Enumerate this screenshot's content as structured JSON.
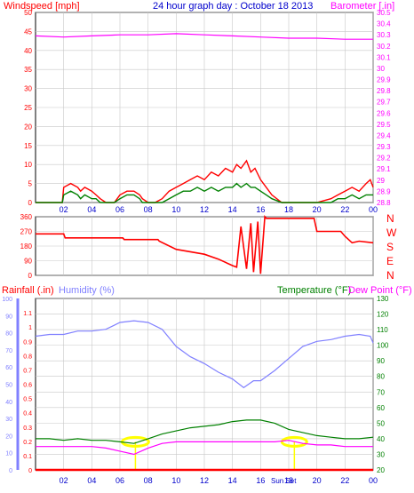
{
  "header": {
    "title": "24 hour graph day : October 18 2013",
    "windspeed_label": "Windspeed [mph]",
    "barometer_label": "Barometer [.in]"
  },
  "colors": {
    "wind": "#ff0000",
    "gust": "#ff0000",
    "avgwind": "#008000",
    "baro": "#ff00ff",
    "dir": "#ff0000",
    "rain": "#ff0000",
    "humidity": "#8080ff",
    "temperature": "#008000",
    "dewpoint": "#ff00ff",
    "title": "#0000cc",
    "axis": "#0000cc",
    "grid": "#c8c8c8",
    "sun": "#ffff00"
  },
  "chart_data": [
    {
      "id": "wind",
      "type": "line",
      "title": "24 hour graph day : October 18 2013",
      "ylabel": "Windspeed [mph]",
      "y2label": "Barometer [.in]",
      "ylim": [
        0,
        50
      ],
      "y2lim": [
        28.8,
        30.5
      ],
      "x_ticks": [
        "02",
        "04",
        "06",
        "08",
        "10",
        "12",
        "14",
        "16",
        "18",
        "20",
        "22",
        "00"
      ],
      "y_ticks": [
        "0",
        "5",
        "10",
        "15",
        "20",
        "25",
        "30",
        "35",
        "40",
        "45",
        "50"
      ],
      "y2_ticks": [
        "28.8",
        "28.9",
        "29",
        "29.1",
        "29.2",
        "29.3",
        "29.4",
        "29.5",
        "29.6",
        "29.7",
        "29.8",
        "29.9",
        "30",
        "30.1",
        "30.2",
        "30.3",
        "30.4",
        "30.5"
      ],
      "series": [
        {
          "role": "gust",
          "x": [
            0,
            1.9,
            2.0,
            2.5,
            3.0,
            3.2,
            3.5,
            4.0,
            4.3,
            4.6,
            5.0,
            5.6,
            6.0,
            6.5,
            7.0,
            7.4,
            7.6,
            8.0,
            8.5,
            9.0,
            9.5,
            10.0,
            10.5,
            11.0,
            11.5,
            12.0,
            12.5,
            13.0,
            13.5,
            14.0,
            14.3,
            14.6,
            15.0,
            15.3,
            15.6,
            16.0,
            16.4,
            16.8,
            17.5,
            18.0,
            19.0,
            20.0,
            21.0,
            21.5,
            22.0,
            22.5,
            23.0,
            23.5,
            23.8,
            24.0
          ],
          "values": [
            0,
            0,
            4,
            5,
            4,
            3,
            4,
            3,
            2,
            1,
            0,
            0,
            2,
            3,
            3,
            2,
            1,
            0,
            0,
            1,
            3,
            4,
            5,
            6,
            7,
            6,
            8,
            7,
            9,
            8,
            10,
            9,
            11,
            8,
            9,
            6,
            4,
            2,
            0,
            0,
            0,
            0,
            1,
            2,
            3,
            4,
            3,
            5,
            6,
            4
          ]
        },
        {
          "role": "wind",
          "x": [
            0,
            1.9,
            2.0,
            2.5,
            3.0,
            3.2,
            3.5,
            4.0,
            4.3,
            4.6,
            5.0,
            5.6,
            6.0,
            6.5,
            7.0,
            7.4,
            7.6,
            8.0,
            8.5,
            9.0,
            9.5,
            10.0,
            10.5,
            11.0,
            11.5,
            12.0,
            12.5,
            13.0,
            13.5,
            14.0,
            14.3,
            14.6,
            15.0,
            15.3,
            15.6,
            16.0,
            16.4,
            16.8,
            17.5,
            18.0,
            19.0,
            20.0,
            21.0,
            21.5,
            22.0,
            22.5,
            23.0,
            23.5,
            23.8,
            24.0
          ],
          "values": [
            0,
            0,
            2,
            3,
            2,
            1,
            2,
            1,
            1,
            0,
            0,
            0,
            1,
            2,
            2,
            1,
            0,
            0,
            0,
            0,
            1,
            2,
            3,
            3,
            4,
            3,
            4,
            3,
            4,
            4,
            5,
            4,
            5,
            4,
            4,
            3,
            2,
            1,
            0,
            0,
            0,
            0,
            0,
            1,
            1,
            2,
            1,
            2,
            2,
            2
          ]
        },
        {
          "role": "baro",
          "x": [
            0,
            2,
            4,
            6,
            8,
            10,
            12,
            14,
            16,
            18,
            20,
            22,
            24
          ],
          "values": [
            30.29,
            30.28,
            30.29,
            30.3,
            30.3,
            30.31,
            30.3,
            30.29,
            30.28,
            30.27,
            30.27,
            30.26,
            30.26
          ]
        }
      ]
    },
    {
      "id": "direction",
      "type": "line",
      "ylim": [
        0,
        360
      ],
      "y_ticks": [
        "0",
        "90",
        "180",
        "270",
        "360"
      ],
      "compass": [
        "N",
        "W",
        "S",
        "E",
        "N"
      ],
      "series": [
        {
          "role": "dir",
          "x": [
            0,
            2,
            2.1,
            6.2,
            6.3,
            8.7,
            8.8,
            10.0,
            12.0,
            13.0,
            14.0,
            14.3,
            14.6,
            15.0,
            15.3,
            15.5,
            15.8,
            16.0,
            16.3,
            16.4,
            19.8,
            20.0,
            21.7,
            22.0,
            22.5,
            23.0,
            24.0
          ],
          "values": [
            255,
            255,
            230,
            230,
            220,
            220,
            210,
            160,
            130,
            100,
            60,
            50,
            300,
            40,
            320,
            20,
            330,
            10,
            360,
            350,
            350,
            270,
            270,
            240,
            200,
            210,
            200
          ]
        }
      ]
    },
    {
      "id": "climate",
      "type": "line",
      "label_rain": "Rainfall (.in)",
      "label_humidity": "Humidity (%)",
      "label_temperature": "Temperature (°F)",
      "label_dewpoint": "Dew Point (°F)",
      "sun_label": "Sun Set",
      "sun_rise_hour": 7.1,
      "sun_set_hour": 18.4,
      "ylim_rain": [
        0,
        1.2
      ],
      "ylim_humidity": [
        0,
        100
      ],
      "ylim_temp": [
        20,
        130
      ],
      "x_ticks": [
        "02",
        "04",
        "06",
        "08",
        "10",
        "12",
        "14",
        "16",
        "18",
        "20",
        "22",
        "00"
      ],
      "rain_ticks": [
        "0",
        "0.1",
        "0.2",
        "0.3",
        "0.4",
        "0.5",
        "0.6",
        "0.7",
        "0.8",
        "0.9",
        "1",
        "1.1"
      ],
      "humidity_ticks": [
        "0",
        "10",
        "20",
        "30",
        "40",
        "50",
        "60",
        "70",
        "80",
        "90",
        "100"
      ],
      "temp_ticks": [
        "20",
        "30",
        "40",
        "50",
        "60",
        "70",
        "80",
        "90",
        "100",
        "110",
        "120",
        "130"
      ],
      "series": [
        {
          "role": "humidity",
          "x": [
            0,
            1,
            2,
            3,
            4,
            5,
            6,
            7,
            8,
            9,
            10,
            11,
            12,
            13,
            14,
            14.8,
            15.5,
            16,
            17,
            18,
            19,
            20,
            21,
            22,
            23,
            23.8,
            24
          ],
          "values": [
            78,
            79,
            79,
            81,
            81,
            82,
            86,
            87,
            86,
            82,
            72,
            66,
            62,
            57,
            53,
            48,
            52,
            52,
            58,
            65,
            72,
            75,
            76,
            78,
            79,
            78,
            74
          ]
        },
        {
          "role": "temperature",
          "x": [
            0,
            1,
            2,
            3,
            4,
            5,
            6,
            7,
            8,
            9,
            10,
            11,
            12,
            13,
            14,
            15,
            16,
            17,
            18,
            19,
            20,
            21,
            22,
            23,
            24
          ],
          "values": [
            40,
            40,
            39,
            40,
            39,
            39,
            38,
            37,
            40,
            43,
            45,
            47,
            48,
            49,
            51,
            52,
            52,
            50,
            46,
            44,
            42,
            41,
            40,
            40,
            41
          ]
        },
        {
          "role": "dewpoint",
          "x": [
            0,
            1,
            2,
            3,
            4,
            5,
            6,
            7,
            8,
            9,
            10,
            11,
            12,
            13,
            14,
            15,
            16,
            17,
            18,
            19,
            20,
            21,
            22,
            23,
            24
          ],
          "values": [
            35,
            35,
            35,
            35,
            35,
            34,
            32,
            30,
            34,
            37,
            38,
            38,
            38,
            38,
            38,
            38,
            38,
            38,
            39,
            37,
            36,
            36,
            35,
            35,
            35
          ]
        },
        {
          "role": "rain",
          "x": [
            0,
            24
          ],
          "values": [
            0,
            0
          ]
        }
      ]
    }
  ]
}
